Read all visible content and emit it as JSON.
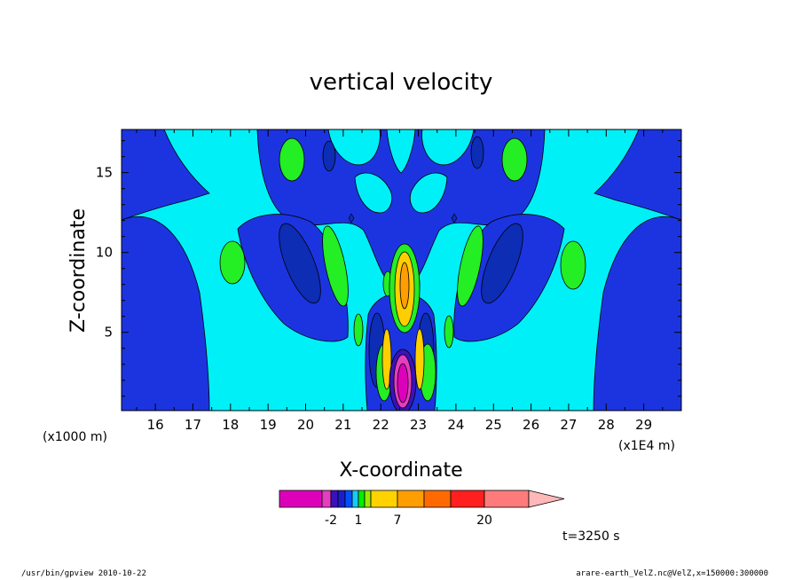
{
  "chart_data": {
    "type": "heatmap",
    "title": "vertical velocity",
    "xlabel": "X-coordinate",
    "ylabel": "Z-coordinate",
    "x_unit_label": "(x1E4 m)",
    "y_unit_label": "(x1000 m)",
    "xlim": [
      15.1,
      30.0
    ],
    "ylim": [
      0.1,
      17.7
    ],
    "x_ticks": [
      "16",
      "17",
      "18",
      "19",
      "20",
      "21",
      "22",
      "23",
      "24",
      "25",
      "26",
      "27",
      "28",
      "29"
    ],
    "y_ticks": [
      "5",
      "10",
      "15"
    ],
    "colorbar": {
      "tick_labels": [
        "-2",
        "1",
        "7",
        "20"
      ],
      "colors": [
        "#dd00bb",
        "#e33fbf",
        "#3a12b9",
        "#1a1fcc",
        "#0050ff",
        "#18c8ff",
        "#00ee00",
        "#9fe800",
        "#ffd200",
        "#ff9e00",
        "#ff6a00",
        "#ff1f1f",
        "#ff7b7b",
        "#ffb7b7"
      ]
    },
    "fill_levels": {
      "background": "#00f0f8",
      "negative": "#1c34e0",
      "strong_negative": "#0c2db4",
      "weak_positive": "#24ee24",
      "positive": "#ffce00",
      "strong_positive": "#ff9e00",
      "downdraft_core": "#dd00bb"
    },
    "time_label": "t=3250 s"
  },
  "footer": {
    "program": "/usr/bin/gpview   2010-10-22",
    "source": "arare-earth_VelZ.nc@VelZ,x=150000:300000"
  }
}
